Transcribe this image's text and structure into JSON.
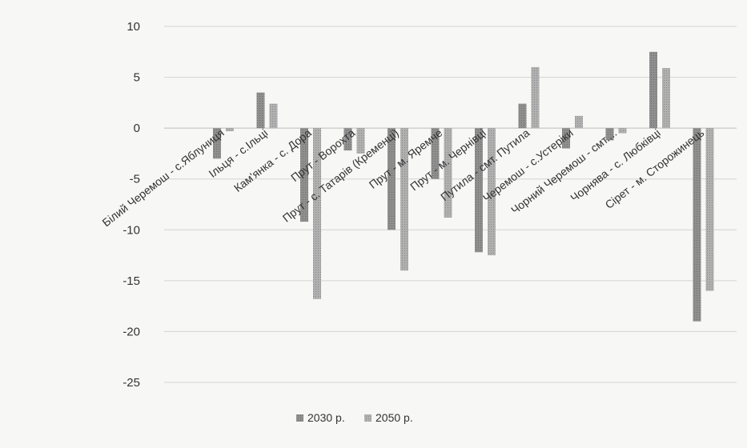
{
  "chart_data": {
    "type": "bar",
    "categories": [
      "Білий Черемош - с.Яблуниця",
      "Ільця - с.Ільці",
      "Кам'янка - с. Дора",
      "Прут - Ворохта",
      "Прут - с. Татарів (Кременці)",
      "Прут - м. Яремче",
      "Прут - м. Чернівці",
      "Путила - смт. Путила",
      "Черемош - с.Устеріки",
      "Чорний Черемош - смт....",
      "Чорнява - с. Любківці",
      "Сірет - м. Сторожинець"
    ],
    "series": [
      {
        "name": "2030 р.",
        "values": [
          -3.0,
          3.5,
          -9.2,
          -2.2,
          -10.0,
          -5.0,
          -12.2,
          2.4,
          -2.0,
          -1.2,
          7.5,
          -19.0
        ]
      },
      {
        "name": "2050 р.",
        "values": [
          -0.3,
          2.4,
          -16.8,
          -2.5,
          -14.0,
          -8.8,
          -12.5,
          6.0,
          1.2,
          -0.5,
          5.9,
          -16.0
        ]
      }
    ],
    "y_ticks": [
      "10",
      "5",
      "0",
      "-5",
      "-10",
      "-15",
      "-20",
      "-25"
    ],
    "ylim": [
      -25,
      10
    ],
    "grid": true,
    "legend_position": "bottom",
    "colors": {
      "series_2030": "#8f8f8f",
      "series_2050": "#a8a8a8"
    }
  }
}
